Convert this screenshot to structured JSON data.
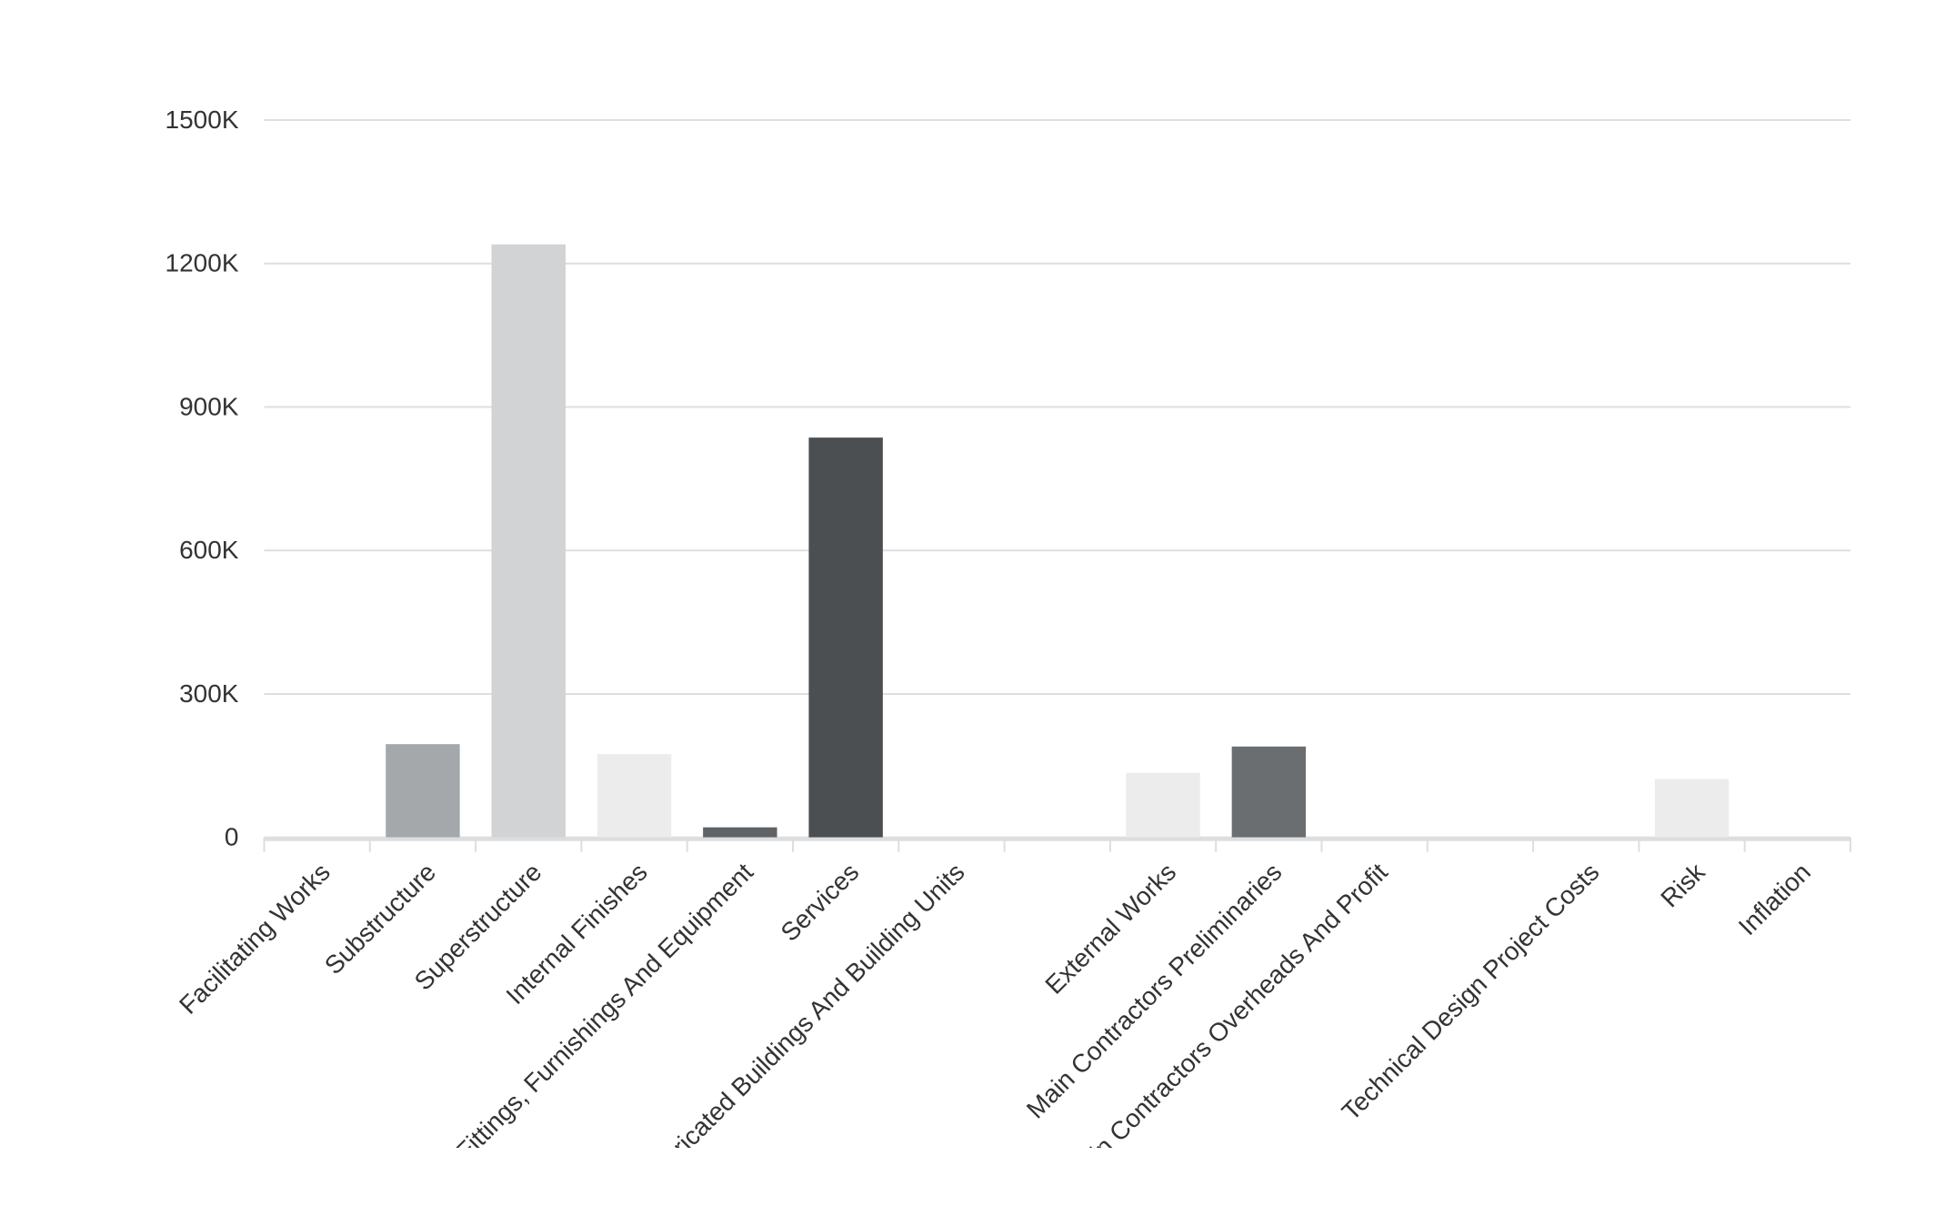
{
  "chart_data": {
    "type": "bar",
    "categories": [
      "Facilitating Works",
      "Substructure",
      "Superstructure",
      "Internal Finishes",
      "Fittings, Furnishings And Equipment",
      "Services",
      "Prefabricated Buildings And Building Units",
      null,
      "External Works",
      "Main Contractors Preliminaries",
      "Main Contractors Overheads And Profit",
      null,
      "Technical Design Project Costs",
      "Risk",
      "Inflation"
    ],
    "values": [
      0,
      195000,
      1240000,
      174000,
      21000,
      836000,
      0,
      0,
      135000,
      190000,
      0,
      0,
      0,
      122000,
      0
    ],
    "colors": [
      "#a5a8aa",
      "#a5a8aa",
      "#d2d3d5",
      "#ececed",
      "#5f6366",
      "#4b4f52",
      "#a5a8aa",
      "#a5a8aa",
      "#ececed",
      "#6b6e71",
      "#a5a8aa",
      "#a5a8aa",
      "#a5a8aa",
      "#ececed",
      "#a5a8aa"
    ],
    "ylim": [
      0,
      1500000
    ],
    "yticks": [
      0,
      {
        "value": 300000,
        "label": "300K"
      },
      {
        "value": 600000,
        "label": "600K"
      },
      {
        "value": 900000,
        "label": "900K"
      },
      {
        "value": 1200000,
        "label": "1200K"
      },
      {
        "value": 1500000,
        "label": "1500K"
      }
    ],
    "grid": true
  }
}
